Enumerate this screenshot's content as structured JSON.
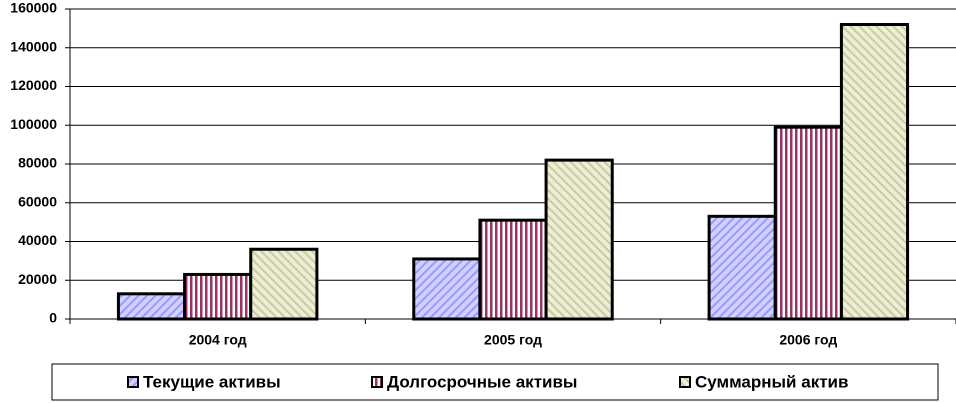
{
  "chart_data": {
    "type": "bar",
    "categories": [
      "2004 год",
      "2005 год",
      "2006 год"
    ],
    "series": [
      {
        "name": "Текущие активы",
        "color": "#9999ff",
        "values": [
          13000,
          31000,
          53000
        ]
      },
      {
        "name": "Долгосрочные активы",
        "color": "#993366",
        "values": [
          23000,
          51000,
          99000
        ]
      },
      {
        "name": "Суммарный актив",
        "color": "#cccc99",
        "values": [
          36000,
          82000,
          152000
        ]
      }
    ],
    "ylim": [
      0,
      160000
    ],
    "yticks": [
      0,
      20000,
      40000,
      60000,
      80000,
      100000,
      120000,
      140000,
      160000
    ],
    "grid": true
  }
}
